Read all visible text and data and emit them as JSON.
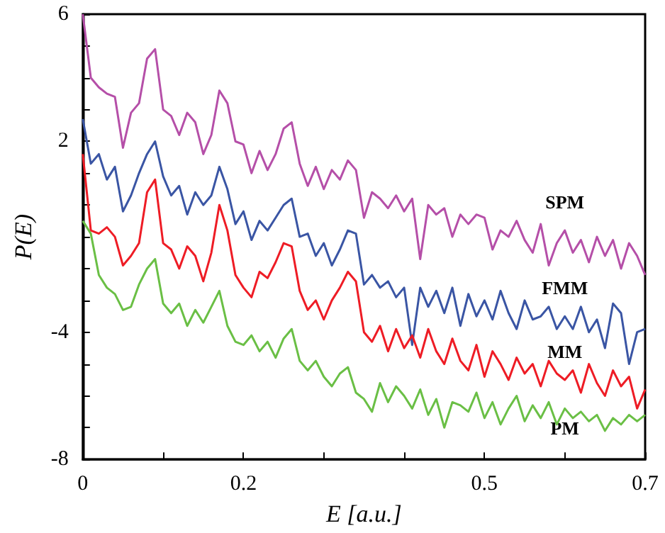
{
  "chart_data": {
    "type": "line",
    "xlabel": "E [a.u.]",
    "ylabel": "P(E)",
    "x": [
      0,
      0.01,
      0.02,
      0.03,
      0.04,
      0.05,
      0.06,
      0.07,
      0.08,
      0.09,
      0.1,
      0.11,
      0.12,
      0.13,
      0.14,
      0.15,
      0.16,
      0.17,
      0.18,
      0.19,
      0.2,
      0.21,
      0.22,
      0.23,
      0.24,
      0.25,
      0.26,
      0.27,
      0.28,
      0.29,
      0.3,
      0.31,
      0.32,
      0.33,
      0.34,
      0.35,
      0.36,
      0.37,
      0.38,
      0.39,
      0.4,
      0.41,
      0.42,
      0.43,
      0.44,
      0.45,
      0.46,
      0.47,
      0.48,
      0.49,
      0.5,
      0.51,
      0.52,
      0.53,
      0.54,
      0.55,
      0.56,
      0.57,
      0.58,
      0.59,
      0.6,
      0.61,
      0.62,
      0.63,
      0.64,
      0.65,
      0.66,
      0.67,
      0.68,
      0.69,
      0.7
    ],
    "series": [
      {
        "name": "SPM",
        "color": "#b54fa8",
        "values": [
          6.0,
          4.0,
          3.7,
          3.5,
          3.4,
          1.8,
          2.9,
          3.2,
          4.6,
          4.9,
          3.0,
          2.8,
          2.2,
          2.9,
          2.6,
          1.6,
          2.2,
          3.6,
          3.2,
          2.0,
          1.9,
          1.0,
          1.7,
          1.1,
          1.6,
          2.4,
          2.6,
          1.3,
          0.6,
          1.2,
          0.5,
          1.1,
          0.8,
          1.4,
          1.1,
          -0.4,
          0.4,
          0.2,
          -0.1,
          0.3,
          -0.2,
          0.2,
          -1.7,
          0.0,
          -0.3,
          -0.1,
          -1.0,
          -0.3,
          -0.6,
          -0.3,
          -0.4,
          -1.4,
          -0.8,
          -1.0,
          -0.5,
          -1.1,
          -1.5,
          -0.6,
          -1.9,
          -1.2,
          -0.8,
          -1.5,
          -1.1,
          -1.8,
          -1.0,
          -1.6,
          -1.1,
          -2.0,
          -1.2,
          -1.6,
          -2.2
        ]
      },
      {
        "name": "FMM",
        "color": "#3a55a4",
        "values": [
          2.7,
          1.3,
          1.6,
          0.8,
          1.2,
          -0.2,
          0.3,
          1.0,
          1.6,
          2.0,
          0.9,
          0.3,
          0.6,
          -0.3,
          0.4,
          0.0,
          0.3,
          1.2,
          0.5,
          -0.6,
          -0.2,
          -1.1,
          -0.5,
          -0.8,
          -0.4,
          0.0,
          0.2,
          -1.0,
          -0.9,
          -1.6,
          -1.2,
          -1.9,
          -1.4,
          -0.8,
          -0.9,
          -2.5,
          -2.2,
          -2.6,
          -2.4,
          -2.9,
          -2.6,
          -4.4,
          -2.6,
          -3.2,
          -2.7,
          -3.4,
          -2.6,
          -3.8,
          -2.8,
          -3.5,
          -3.0,
          -3.6,
          -2.7,
          -3.4,
          -3.9,
          -3.0,
          -3.6,
          -3.5,
          -3.2,
          -3.9,
          -3.5,
          -3.9,
          -3.2,
          -4.0,
          -3.6,
          -4.5,
          -3.1,
          -3.4,
          -5.0,
          -4.0,
          -3.9
        ]
      },
      {
        "name": "MM",
        "color": "#ee1c25",
        "values": [
          1.6,
          -0.8,
          -0.9,
          -0.7,
          -1.0,
          -1.9,
          -1.6,
          -1.2,
          0.4,
          0.8,
          -1.2,
          -1.4,
          -2.0,
          -1.3,
          -1.6,
          -2.4,
          -1.5,
          0.0,
          -0.8,
          -2.2,
          -2.6,
          -2.9,
          -2.1,
          -2.3,
          -1.8,
          -1.2,
          -1.3,
          -2.7,
          -3.3,
          -3.0,
          -3.6,
          -3.0,
          -2.6,
          -2.1,
          -2.4,
          -4.0,
          -4.3,
          -3.8,
          -4.6,
          -3.9,
          -4.5,
          -4.1,
          -4.8,
          -3.9,
          -4.6,
          -5.0,
          -4.2,
          -4.9,
          -5.2,
          -4.4,
          -5.4,
          -4.6,
          -5.0,
          -5.5,
          -4.8,
          -5.3,
          -5.0,
          -5.7,
          -4.9,
          -5.3,
          -5.5,
          -5.2,
          -5.9,
          -5.0,
          -5.6,
          -6.0,
          -5.2,
          -5.7,
          -5.4,
          -6.4,
          -5.8
        ]
      },
      {
        "name": "PM",
        "color": "#6abf45",
        "values": [
          -0.5,
          -0.9,
          -2.2,
          -2.6,
          -2.8,
          -3.3,
          -3.2,
          -2.5,
          -2.0,
          -1.7,
          -3.1,
          -3.4,
          -3.1,
          -3.8,
          -3.3,
          -3.7,
          -3.2,
          -2.7,
          -3.8,
          -4.3,
          -4.4,
          -4.1,
          -4.6,
          -4.3,
          -4.8,
          -4.2,
          -3.9,
          -4.9,
          -5.2,
          -4.9,
          -5.4,
          -5.7,
          -5.3,
          -5.1,
          -5.9,
          -6.1,
          -6.5,
          -5.6,
          -6.2,
          -5.7,
          -6.0,
          -6.4,
          -5.8,
          -6.6,
          -6.1,
          -7.0,
          -6.2,
          -6.3,
          -6.5,
          -5.9,
          -6.7,
          -6.2,
          -6.9,
          -6.4,
          -6.0,
          -6.8,
          -6.3,
          -6.7,
          -6.2,
          -6.9,
          -6.4,
          -6.7,
          -6.5,
          -6.8,
          -6.6,
          -7.1,
          -6.7,
          -6.9,
          -6.6,
          -6.8,
          -6.6
        ]
      }
    ],
    "xlim": [
      0,
      0.7
    ],
    "xticks": [
      0,
      {
        "value": 0.1,
        "label": null
      },
      0.2,
      {
        "value": 0.3,
        "label": null
      },
      {
        "value": 0.4,
        "label": null
      },
      0.5,
      {
        "value": 0.6,
        "label": null
      },
      0.7
    ],
    "ylim": [
      -8,
      6
    ],
    "yticks": [
      -8,
      {
        "value": -7,
        "label": null
      },
      {
        "value": -6,
        "label": null
      },
      {
        "value": -5,
        "label": null
      },
      -4,
      {
        "value": -3,
        "label": null
      },
      {
        "value": -2,
        "label": null
      },
      {
        "value": -1,
        "label": null
      },
      {
        "value": 0,
        "label": null
      },
      {
        "value": 1,
        "label": null
      },
      2,
      {
        "value": 3,
        "label": null
      },
      {
        "value": 4,
        "label": null
      },
      {
        "value": 5,
        "label": null
      },
      6
    ],
    "grid": false,
    "legend": false,
    "marker": "none",
    "line_style": "solid"
  }
}
